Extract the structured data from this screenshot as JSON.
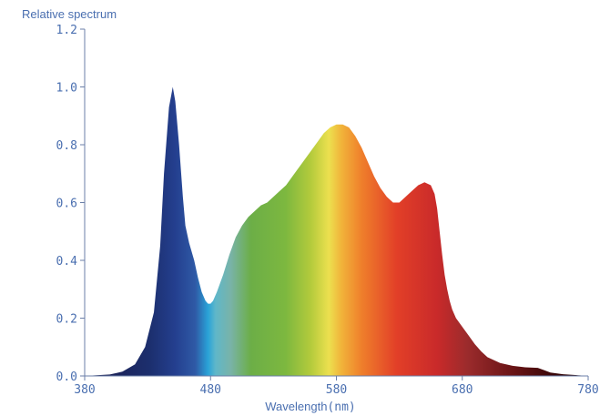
{
  "chart_data": {
    "type": "area",
    "ylabel": "Relative spectrum",
    "xlabel": "Wavelength",
    "xlabel_unit": "(nm)",
    "xlim": [
      380,
      780
    ],
    "ylim": [
      0,
      1.2
    ],
    "x_ticks": [
      "380",
      "480",
      "580",
      "680",
      "780"
    ],
    "y_ticks": [
      "0.0",
      "0.2",
      "0.4",
      "0.6",
      "0.8",
      "1.0",
      "1.2"
    ],
    "grid": false,
    "fill": "visible-spectrum gradient",
    "x": [
      380,
      400,
      410,
      420,
      428,
      435,
      440,
      443,
      447,
      450,
      452,
      455,
      458,
      460,
      463,
      467,
      470,
      473,
      476,
      478,
      480,
      482,
      485,
      490,
      495,
      500,
      505,
      510,
      515,
      520,
      525,
      530,
      535,
      540,
      545,
      550,
      555,
      560,
      565,
      570,
      575,
      580,
      585,
      590,
      595,
      600,
      605,
      610,
      615,
      620,
      625,
      630,
      635,
      640,
      645,
      650,
      655,
      658,
      660,
      662,
      664,
      666,
      668,
      670,
      672,
      675,
      680,
      685,
      690,
      695,
      700,
      710,
      720,
      730,
      740,
      745,
      750,
      760,
      770,
      780
    ],
    "y": [
      0.0,
      0.005,
      0.015,
      0.04,
      0.1,
      0.22,
      0.45,
      0.7,
      0.93,
      1.0,
      0.95,
      0.8,
      0.62,
      0.52,
      0.46,
      0.4,
      0.34,
      0.29,
      0.26,
      0.25,
      0.25,
      0.26,
      0.29,
      0.35,
      0.42,
      0.48,
      0.52,
      0.55,
      0.57,
      0.59,
      0.6,
      0.62,
      0.64,
      0.66,
      0.69,
      0.72,
      0.75,
      0.78,
      0.81,
      0.84,
      0.86,
      0.87,
      0.87,
      0.86,
      0.83,
      0.79,
      0.74,
      0.69,
      0.65,
      0.62,
      0.6,
      0.6,
      0.62,
      0.64,
      0.66,
      0.67,
      0.66,
      0.63,
      0.58,
      0.5,
      0.42,
      0.35,
      0.3,
      0.26,
      0.23,
      0.2,
      0.17,
      0.14,
      0.11,
      0.085,
      0.065,
      0.045,
      0.035,
      0.03,
      0.028,
      0.02,
      0.012,
      0.006,
      0.003,
      0.0
    ]
  }
}
